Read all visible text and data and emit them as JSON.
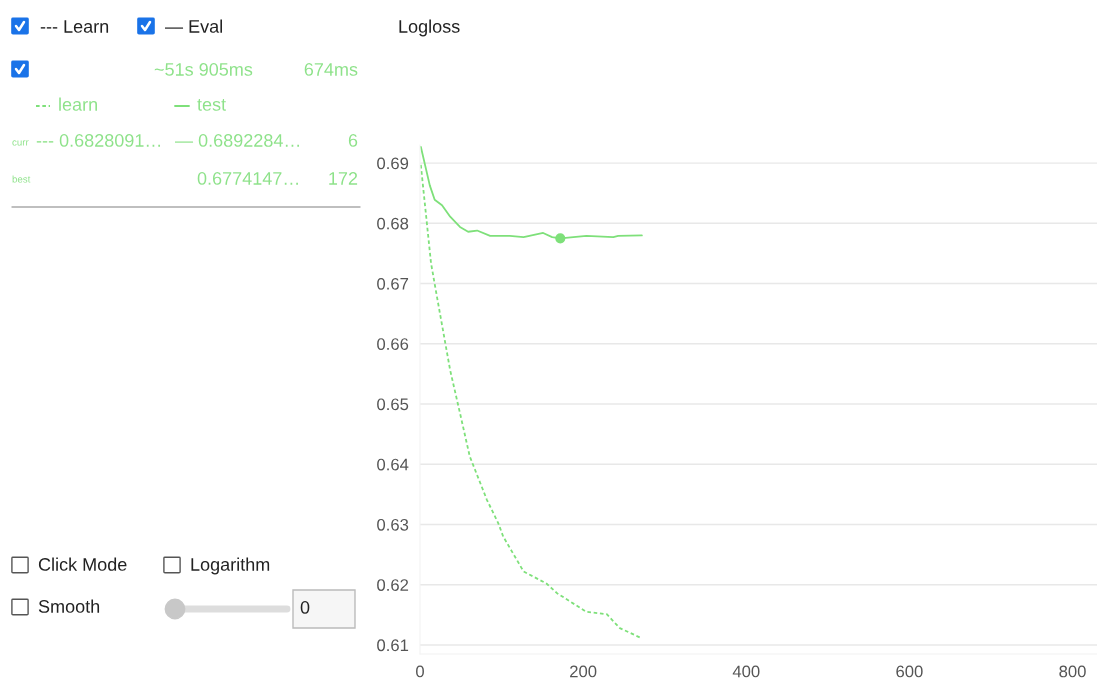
{
  "chart_data": {
    "type": "line",
    "title": "Logloss",
    "xlim": [
      0,
      830
    ],
    "xticks": [
      0,
      200,
      400,
      600,
      800
    ],
    "ylim": [
      0.6085,
      0.693
    ],
    "yticks": [
      0.61,
      0.62,
      0.63,
      0.64,
      0.65,
      0.66,
      0.67,
      0.68,
      0.69
    ],
    "grid": "y",
    "marker": "none",
    "legend": "top left",
    "series": [
      {
        "name": "learn",
        "color": "#7ee07a",
        "line_style": "dashed",
        "x": [
          1,
          13.5,
          20,
          37,
          49,
          61,
          82,
          96,
          102,
          127,
          155,
          168,
          204,
          229,
          245,
          272
        ],
        "values": [
          0.6897,
          0.6734,
          0.6684,
          0.6556,
          0.6485,
          0.6413,
          0.6341,
          0.6302,
          0.628,
          0.6222,
          0.6202,
          0.6186,
          0.6155,
          0.6151,
          0.6128,
          0.6111
        ]
      },
      {
        "name": "test",
        "color": "#7ee07a",
        "line_style": "solid",
        "x": [
          1,
          12,
          18,
          27,
          37,
          49,
          59,
          70,
          86,
          110,
          127,
          151,
          162,
          172,
          204,
          237,
          243,
          272
        ],
        "values": [
          0.6927,
          0.6863,
          0.6839,
          0.683,
          0.6811,
          0.6794,
          0.6786,
          0.6788,
          0.6779,
          0.6779,
          0.6777,
          0.6784,
          0.6777,
          0.6775,
          0.6779,
          0.6777,
          0.6779,
          0.678
        ]
      },
      {
        "type": "scatter",
        "color": "#7ee07a",
        "marker": "circle",
        "x": [
          172
        ],
        "values": [
          0.6775
        ]
      }
    ],
    "annotations": [
      "--- Learn",
      "— Eval",
      "~51s 905ms",
      "674ms",
      "curr",
      "--- 0.6828091…",
      "— 0.6892284…",
      "6",
      "best",
      "0.6774147…",
      "172",
      "Click Mode",
      "Logarithm",
      "Smooth",
      "0"
    ]
  }
}
